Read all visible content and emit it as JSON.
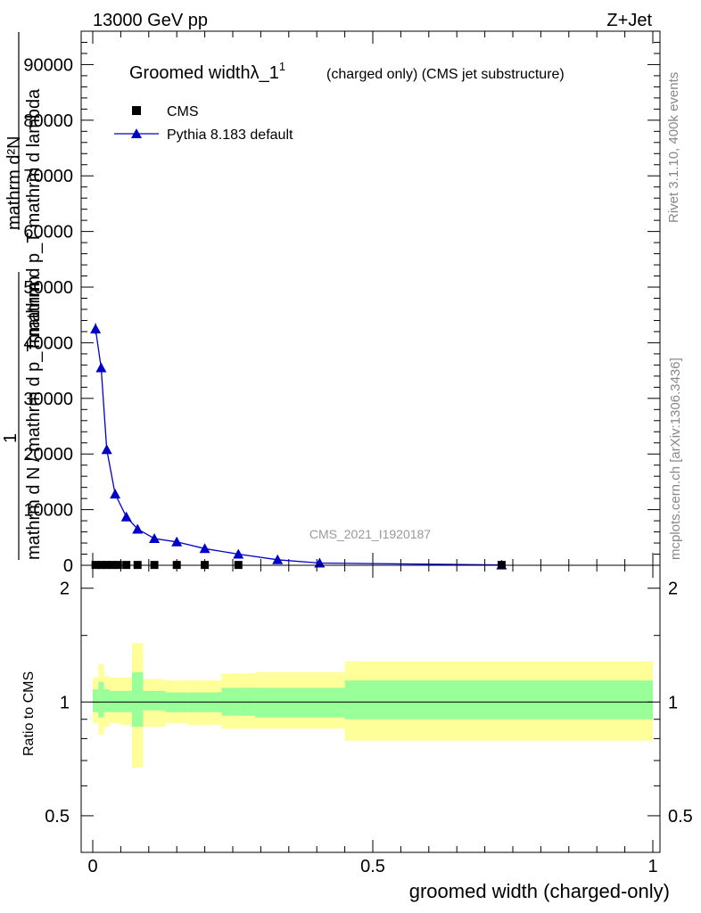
{
  "header": {
    "energy_label": "13000 GeV pp",
    "process_label": "Z+Jet"
  },
  "side_labels": {
    "rivet": "Rivet 3.1.10,  400k events",
    "mcplots": "mcplots.cern.ch [arXiv:1306.3436]"
  },
  "watermark": "CMS_2021_I1920187",
  "chart_data": [
    {
      "type": "line",
      "panel": "main",
      "title_main": "Groomed width",
      "title_lambda": "λ_1",
      "title_sup": "1",
      "title_rest": "(charged only) (CMS jet substructure)",
      "ylabel_lines": [
        "mathrm d²N",
        "mathrm d p_T mathrm d lambda",
        "1",
        "mathrm d N / mathrm d p_T mathrm"
      ],
      "xlabel": "",
      "xlim": [
        0,
        1
      ],
      "ylim": [
        0,
        96000
      ],
      "y_ticks": [
        0,
        10000,
        20000,
        30000,
        40000,
        50000,
        60000,
        70000,
        80000,
        90000
      ],
      "y_tick_labels": [
        "0",
        "10000",
        "20000",
        "30000",
        "40000",
        "50000",
        "60000",
        "70000",
        "80000",
        "90000"
      ],
      "legend_position": "top-left",
      "series": [
        {
          "name": "CMS",
          "marker": "square",
          "color": "#000000",
          "x": [
            0.005,
            0.015,
            0.025,
            0.035,
            0.045,
            0.06,
            0.08,
            0.11,
            0.15,
            0.2,
            0.26,
            0.73
          ],
          "y": [
            60,
            60,
            60,
            60,
            60,
            60,
            60,
            60,
            60,
            60,
            60,
            60
          ]
        },
        {
          "name": "Pythia 8.183 default",
          "marker": "triangle",
          "color": "#0000cc",
          "x": [
            0.005,
            0.015,
            0.025,
            0.04,
            0.06,
            0.08,
            0.11,
            0.15,
            0.2,
            0.26,
            0.33,
            0.405,
            0.73
          ],
          "y": [
            42500,
            35500,
            20800,
            12800,
            8700,
            6500,
            4800,
            4200,
            3000,
            2000,
            1000,
            400,
            60
          ],
          "yerr": [
            1000,
            800,
            400,
            300,
            200,
            150,
            100,
            100,
            80,
            60,
            50,
            30,
            10
          ]
        }
      ]
    },
    {
      "type": "area",
      "panel": "ratio",
      "ylabel": "Ratio to CMS",
      "xlabel": "groomed width (charged-only)",
      "xlim": [
        0,
        1
      ],
      "ylim": [
        0.4,
        2.3
      ],
      "y_scale": "log",
      "y_ticks": [
        0.5,
        1,
        2
      ],
      "y_tick_labels": [
        "0.5",
        "1",
        "2"
      ],
      "x_ticks": [
        0,
        0.5,
        1
      ],
      "x_tick_labels": [
        "0",
        "0.5",
        "1"
      ],
      "reference_line": 1,
      "bands": {
        "yellow_color": "#ffff99",
        "green_color": "#99ff99",
        "edges": [
          0,
          0.01,
          0.02,
          0.03,
          0.05,
          0.07,
          0.09,
          0.13,
          0.17,
          0.23,
          0.29,
          0.45,
          1.0
        ],
        "yellow_low": [
          0.88,
          0.82,
          0.86,
          0.88,
          0.87,
          0.67,
          0.86,
          0.88,
          0.87,
          0.85,
          0.85,
          0.79
        ],
        "yellow_high": [
          1.16,
          1.26,
          1.17,
          1.16,
          1.16,
          1.43,
          1.15,
          1.14,
          1.14,
          1.19,
          1.2,
          1.28
        ],
        "green_low": [
          0.94,
          0.91,
          0.94,
          0.94,
          0.94,
          0.86,
          0.95,
          0.94,
          0.94,
          0.92,
          0.91,
          0.9
        ],
        "green_high": [
          1.08,
          1.13,
          1.08,
          1.07,
          1.07,
          1.2,
          1.07,
          1.06,
          1.06,
          1.09,
          1.09,
          1.14
        ]
      }
    }
  ]
}
